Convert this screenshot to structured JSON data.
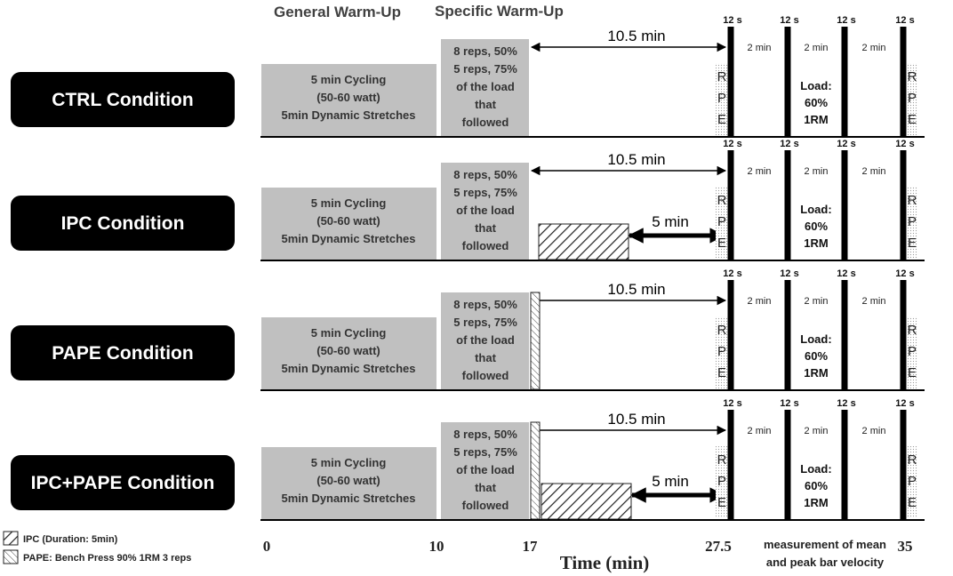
{
  "headers": {
    "general": "General Warm-Up",
    "specific": "Specific Warm-Up"
  },
  "general_box": [
    "5 min Cycling",
    "(50-60 watt)",
    "5min Dynamic Stretches"
  ],
  "specific_box": [
    "8 reps, 50%",
    "5 reps, 75%",
    "of the load",
    "that",
    "followed"
  ],
  "rest_label": "10.5 min",
  "rest_short_label": "5 min",
  "set_time": "12 s",
  "rest_between": "2 min",
  "rpe": [
    "R",
    "P",
    "E"
  ],
  "load": [
    "Load:",
    "60%",
    "1RM"
  ],
  "conditions": [
    {
      "name": "CTRL Condition",
      "ipc": false,
      "pape": false
    },
    {
      "name": "IPC Condition",
      "ipc": true,
      "pape": false
    },
    {
      "name": "PAPE Condition",
      "ipc": false,
      "pape": true
    },
    {
      "name": "IPC+PAPE Condition",
      "ipc": true,
      "pape": true
    }
  ],
  "axis": {
    "title": "Time (min)",
    "ticks": [
      "0",
      "10",
      "17",
      "27.5",
      "35"
    ],
    "measurement_note": [
      "measurement of mean",
      "and peak bar velocity"
    ]
  },
  "legend": [
    {
      "pattern": "ipc",
      "label": "IPC (Duration: 5min)"
    },
    {
      "pattern": "pape",
      "label": "PAPE: Bench Press 90% 1RM 3 reps"
    }
  ],
  "colors": {
    "box_gray": "#c0c0c0",
    "condition_bg": "#000000",
    "line": "#000000"
  }
}
